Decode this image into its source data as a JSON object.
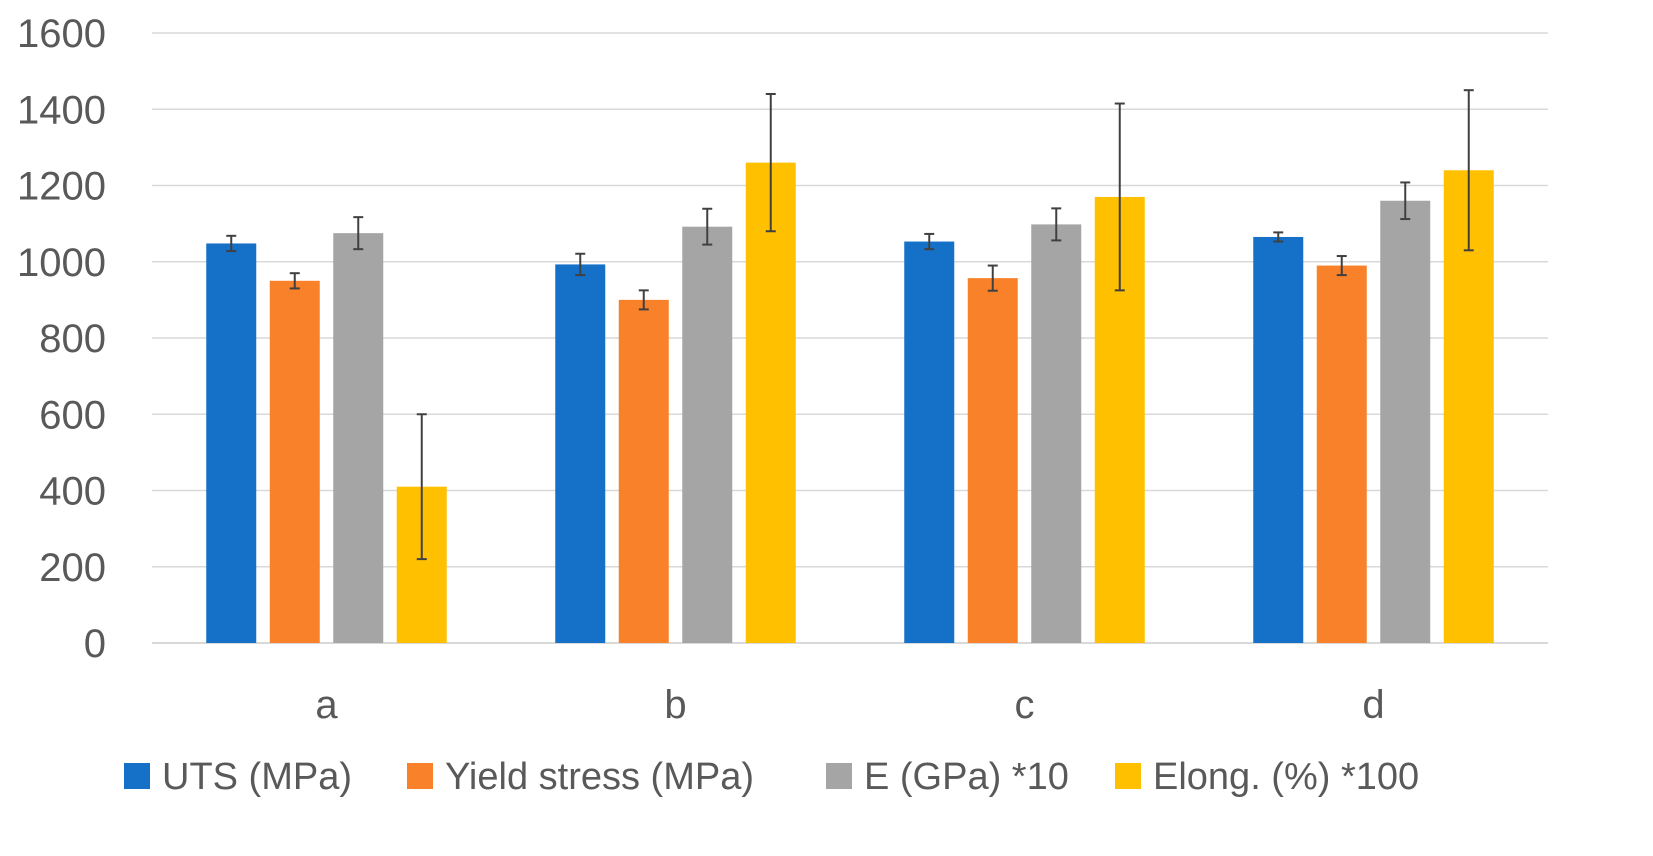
{
  "chart_data": {
    "type": "bar",
    "title": "",
    "xlabel": "",
    "ylabel": "",
    "ylim": [
      0,
      1600
    ],
    "yticks": [
      0,
      200,
      400,
      600,
      800,
      1000,
      1200,
      1400,
      1600
    ],
    "grid": true,
    "legend_position": "bottom",
    "categories": [
      "a",
      "b",
      "c",
      "d"
    ],
    "series": [
      {
        "name": "UTS (MPa)",
        "color": "#1570c8",
        "values": [
          1048,
          993,
          1053,
          1065
        ],
        "errors": [
          20,
          28,
          20,
          12
        ]
      },
      {
        "name": "Yield stress (MPa)",
        "color": "#f8812a",
        "values": [
          950,
          900,
          957,
          990
        ],
        "errors": [
          20,
          25,
          33,
          25
        ]
      },
      {
        "name": "E (GPa) *10",
        "color": "#a5a5a5",
        "values": [
          1075,
          1092,
          1098,
          1160
        ],
        "errors": [
          42,
          47,
          42,
          48
        ]
      },
      {
        "name": "Elong. (%) *100",
        "color": "#ffc000",
        "values": [
          410,
          1260,
          1170,
          1240
        ],
        "errors": [
          190,
          180,
          245,
          210
        ]
      }
    ]
  }
}
